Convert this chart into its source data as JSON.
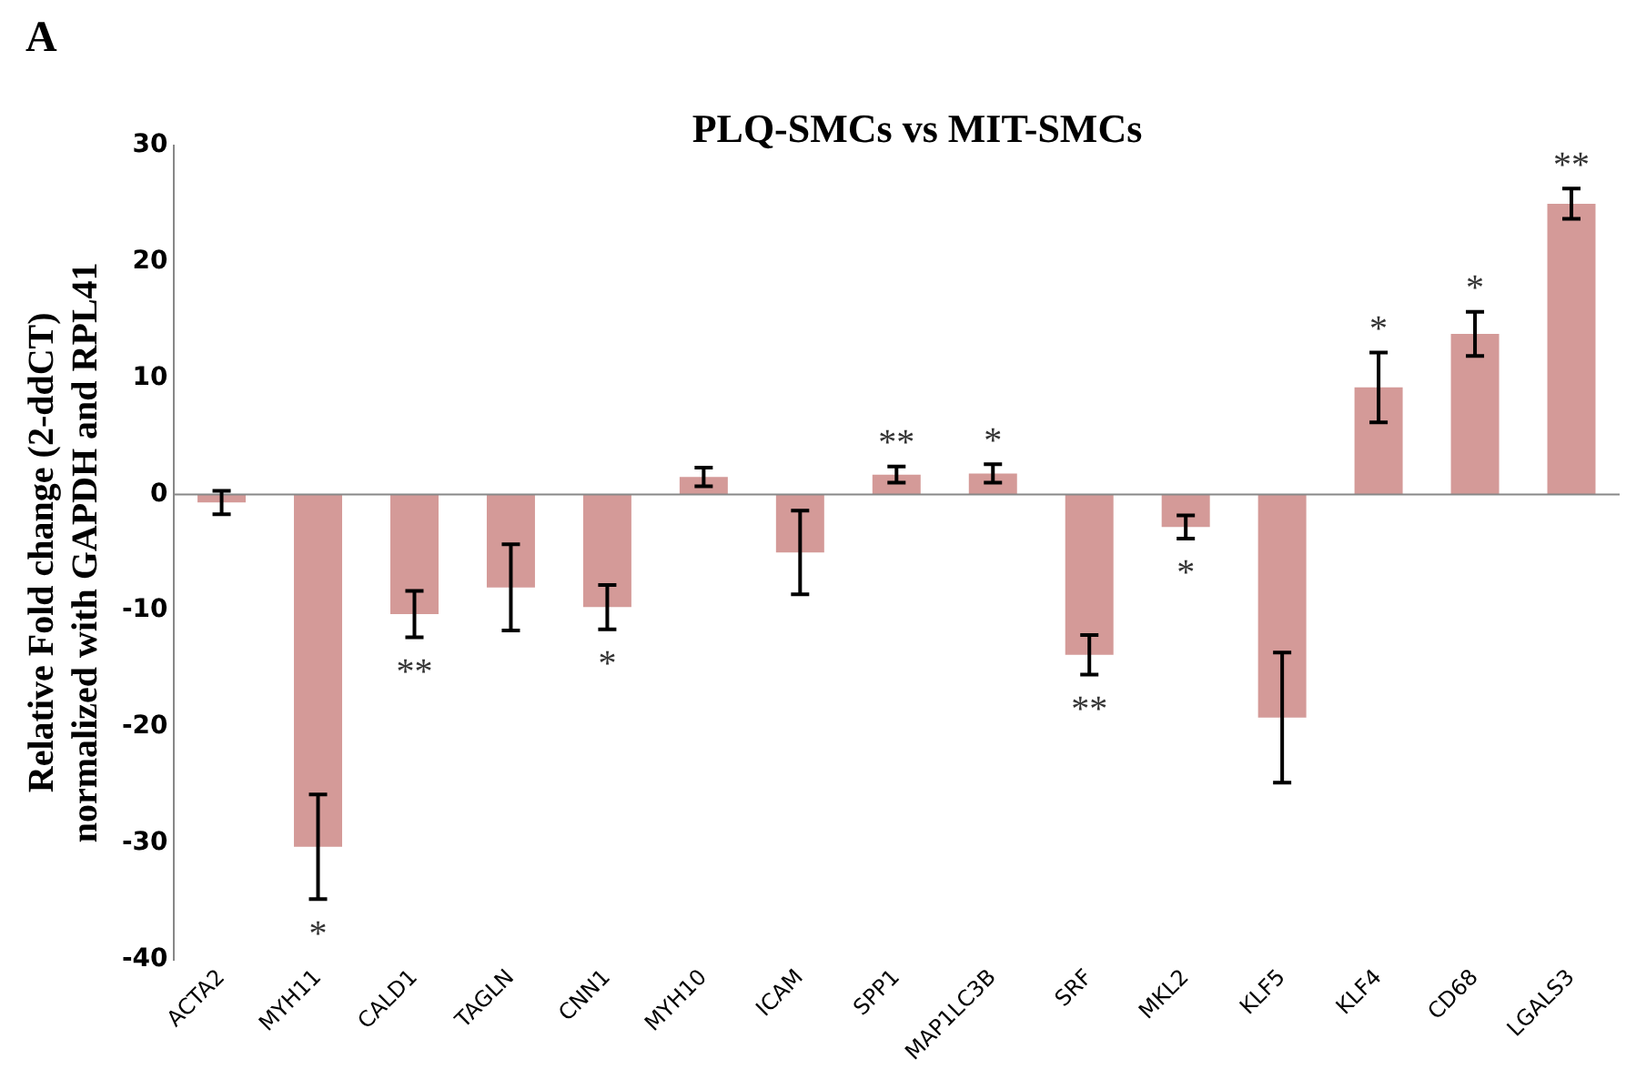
{
  "chart_data": {
    "type": "bar",
    "title": "PLQ-SMCs vs MIT-SMCs",
    "ylabel": "Relative Fold change (2-ddCT)\nnormalized with GAPDH and RPL41",
    "categories": [
      "ACTA2",
      "MYH11",
      "CALD1",
      "TAGLN",
      "CNN1",
      "MYH10",
      "ICAM",
      "SPP1",
      "MAP1LC3B",
      "SRF",
      "MKL2",
      "KLF5",
      "KLF4",
      "CD68",
      "LGALS3"
    ],
    "values": [
      -0.7,
      -30.3,
      -10.3,
      -8,
      -9.7,
      1.5,
      -5,
      1.7,
      1.8,
      -13.8,
      -2.8,
      -19.2,
      9.2,
      13.8,
      25
    ],
    "errors": [
      1,
      4.5,
      2,
      3.7,
      1.9,
      0.8,
      3.6,
      0.7,
      0.8,
      1.7,
      1,
      5.6,
      3,
      1.9,
      1.3
    ],
    "color": "#d49a98",
    "ylim": [
      -40,
      30
    ],
    "yticks": [
      -40,
      -30,
      -20,
      -10,
      0,
      10,
      20,
      30
    ],
    "grid": false,
    "legend": false,
    "ref_lines": [
      {
        "axis": "y",
        "value": 0,
        "color": "#888888"
      }
    ],
    "annotations": [
      "A",
      {
        "text": "*",
        "x": "MYH11",
        "y": -30.3
      },
      {
        "text": "**",
        "x": "CALD1",
        "y": -10.3
      },
      {
        "text": "*",
        "x": "CNN1",
        "y": -9.7
      },
      {
        "text": "**",
        "x": "SPP1",
        "y": 1.7
      },
      {
        "text": "*",
        "x": "MAP1LC3B",
        "y": 1.8
      },
      {
        "text": "**",
        "x": "SRF",
        "y": -13.8
      },
      {
        "text": "*",
        "x": "MKL2",
        "y": -2.8
      },
      {
        "text": "*",
        "x": "KLF4",
        "y": 9.2
      },
      {
        "text": "*",
        "x": "CD68",
        "y": 13.8
      },
      {
        "text": "**",
        "x": "LGALS3",
        "y": 25
      }
    ]
  }
}
